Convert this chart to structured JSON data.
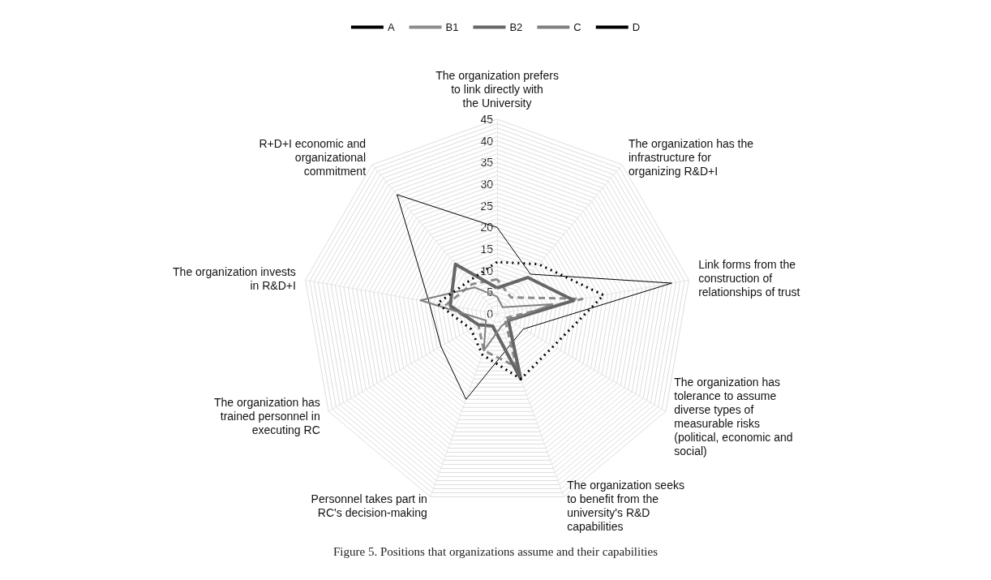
{
  "chart_data": {
    "type": "radar",
    "categories": [
      "The organization prefers to link directly with the University",
      "The organization has the infrastructure for organizing R&D+I",
      "Link forms from the construction of relationships of trust",
      "The organization has tolerance to assume diverse types of measurable risks (political, economic and social)",
      "The organization seeks to benefit from the university's R&D capabilities",
      "Personnel takes part in RC's decision-making",
      "The organization has trained personnel in executing RC",
      "The organization invests in R&D+I",
      "R+D+I economic and organizational commitment"
    ],
    "series": [
      {
        "name": "A",
        "color": "#000000",
        "line_style": "solid",
        "values": [
          20,
          12,
          41,
          7,
          8,
          21,
          15,
          16,
          36
        ]
      },
      {
        "name": "B1",
        "color": "#8c8c8c",
        "line_style": "dashed",
        "values": [
          8,
          5,
          20,
          2,
          13,
          9,
          5,
          12,
          9
        ]
      },
      {
        "name": "B2",
        "color": "#666666",
        "line_style": "solid",
        "values": [
          6,
          11,
          18,
          3,
          16,
          3,
          5,
          11,
          15
        ]
      },
      {
        "name": "C",
        "color": "#808080",
        "line_style": "solid",
        "values": [
          4,
          2,
          13,
          3,
          3,
          9,
          3,
          18,
          8
        ]
      },
      {
        "name": "D",
        "color": "#000000",
        "line_style": "dotted",
        "values": [
          12,
          15,
          25,
          15,
          16,
          10,
          7,
          14,
          10
        ]
      }
    ],
    "ylim": [
      0,
      45
    ],
    "yticks": [
      0,
      5,
      10,
      15,
      20,
      25,
      30,
      35,
      40,
      45
    ],
    "legend": "top",
    "marker": "none",
    "grid": true,
    "annotations": [
      "Figure 5. Positions that organizations assume and their capabilities"
    ]
  }
}
